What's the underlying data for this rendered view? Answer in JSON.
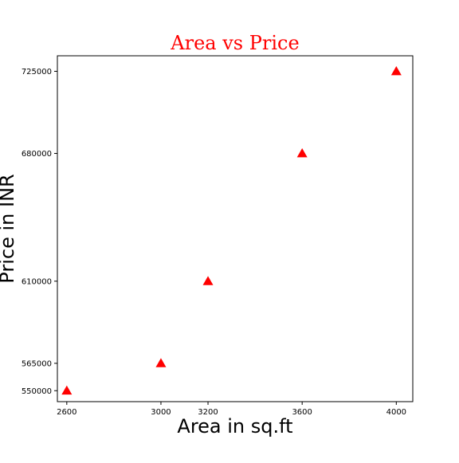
{
  "chart_data": {
    "type": "scatter",
    "title": "Area vs Price",
    "xlabel": "Area in sq.ft",
    "ylabel": "Price in INR",
    "x": [
      2600,
      3000,
      3200,
      3600,
      4000
    ],
    "y": [
      550000,
      565000,
      610000,
      680000,
      725000
    ],
    "x_ticks": [
      "2600",
      "3000",
      "3200",
      "3600",
      "4000"
    ],
    "y_ticks": [
      "550000",
      "565000",
      "610000",
      "680000",
      "725000"
    ],
    "xlim": [
      2560,
      4070
    ],
    "ylim": [
      544000,
      733500
    ],
    "marker": "triangle",
    "grid": false,
    "colors": {
      "title": "#ff0000",
      "marker": "#ff0000",
      "axes": "#000000"
    }
  }
}
